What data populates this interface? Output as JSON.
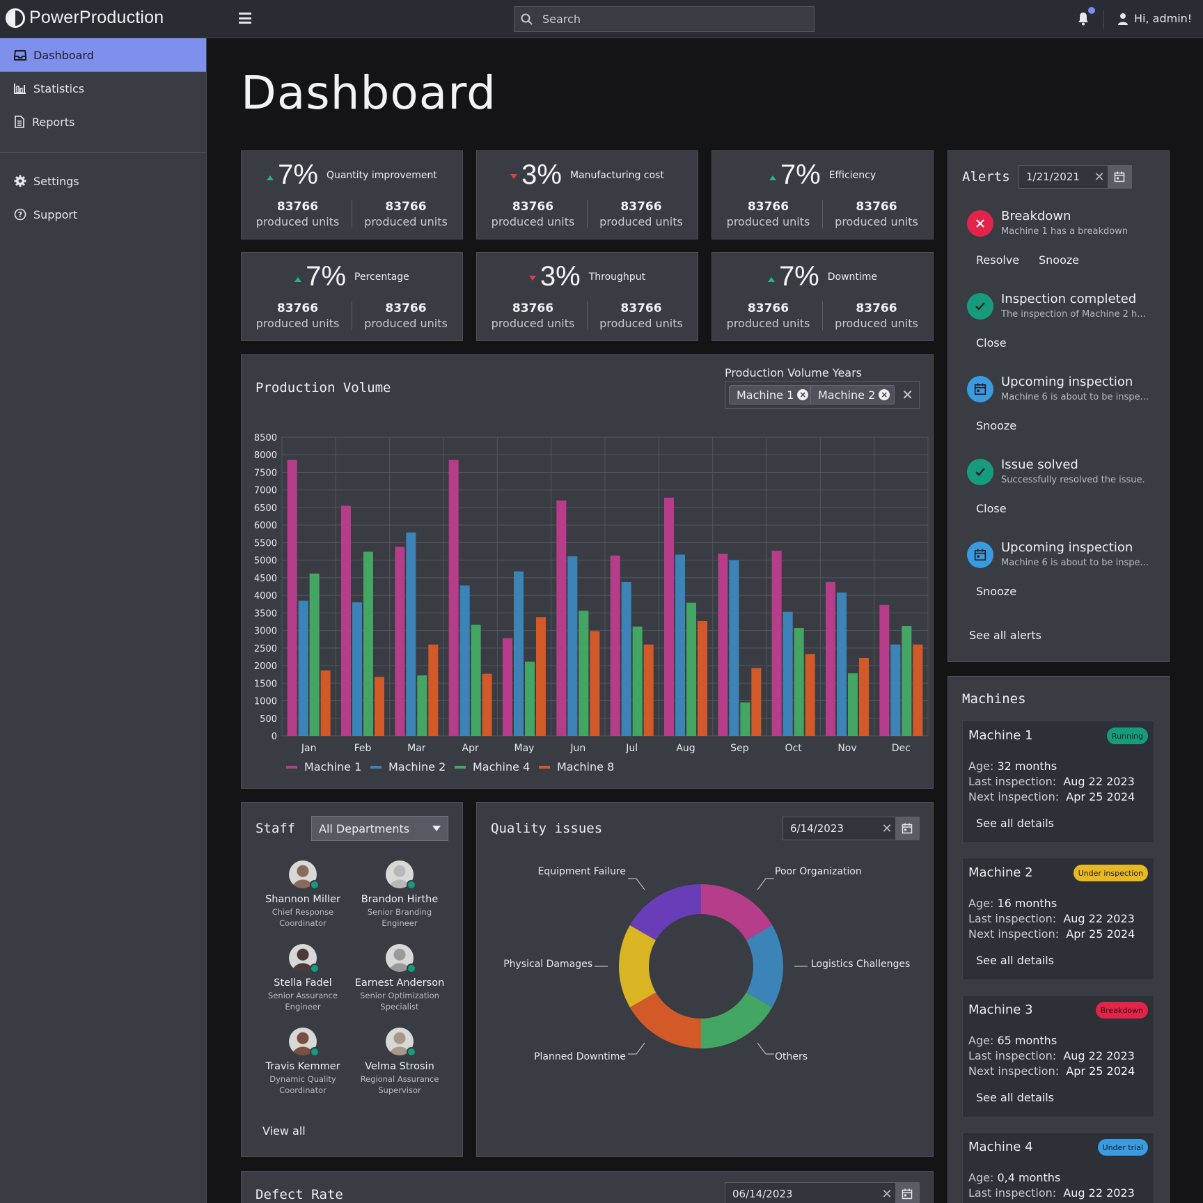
{
  "app": {
    "name": "PowerProduction"
  },
  "search": {
    "placeholder": "Search"
  },
  "user": {
    "greeting": "Hi, admin!"
  },
  "sidebar": {
    "items": [
      {
        "label": "Dashboard",
        "icon": "inbox-icon",
        "active": true
      },
      {
        "label": "Statistics",
        "icon": "statistics-icon"
      },
      {
        "label": "Reports",
        "icon": "document-icon"
      }
    ],
    "items2": [
      {
        "label": "Settings",
        "icon": "gear-icon"
      },
      {
        "label": "Support",
        "icon": "help-icon"
      }
    ]
  },
  "page": {
    "title": "Dashboard"
  },
  "kpis": [
    {
      "trend": "up",
      "percent": "7%",
      "label": "Quantity improvement",
      "v1": "83766",
      "u1": "produced units",
      "v2": "83766",
      "u2": "produced units"
    },
    {
      "trend": "down",
      "percent": "3%",
      "label": "Manufacturing cost",
      "v1": "83766",
      "u1": "produced units",
      "v2": "83766",
      "u2": "produced units"
    },
    {
      "trend": "up",
      "percent": "7%",
      "label": "Efficiency",
      "v1": "83766",
      "u1": "produced units",
      "v2": "83766",
      "u2": "produced units"
    },
    {
      "trend": "up",
      "percent": "7%",
      "label": "Percentage",
      "v1": "83766",
      "u1": "produced units",
      "v2": "83766",
      "u2": "produced units"
    },
    {
      "trend": "down",
      "percent": "3%",
      "label": "Throughput",
      "v1": "83766",
      "u1": "produced units",
      "v2": "83766",
      "u2": "produced units"
    },
    {
      "trend": "up",
      "percent": "7%",
      "label": "Downtime",
      "v1": "83766",
      "u1": "produced units",
      "v2": "83766",
      "u2": "produced units"
    }
  ],
  "production": {
    "title": "Production Volume",
    "filter_label": "Production Volume Years",
    "chips": [
      "Machine 1",
      "Machine 2"
    ]
  },
  "chart_data": {
    "type": "bar",
    "categories": [
      "Jan",
      "Feb",
      "Mar",
      "Apr",
      "May",
      "Jun",
      "Jul",
      "Aug",
      "Sep",
      "Oct",
      "Nov",
      "Dec"
    ],
    "ylim": [
      0,
      8500
    ],
    "yticks": [
      0,
      500,
      1000,
      1500,
      2000,
      2500,
      3000,
      3500,
      4000,
      4500,
      5000,
      5500,
      6000,
      6500,
      7000,
      7500,
      8000,
      8500
    ],
    "grid": true,
    "legend": "bottom-left",
    "series": [
      {
        "name": "Machine 1",
        "color": "#b53d8a",
        "values": [
          7850,
          6550,
          5380,
          7850,
          2780,
          6700,
          5130,
          6780,
          5180,
          5270,
          4380,
          3730
        ]
      },
      {
        "name": "Machine 2",
        "color": "#3c83b8",
        "values": [
          3850,
          3800,
          5790,
          4280,
          4680,
          5110,
          4380,
          5160,
          5000,
          3530,
          4080,
          2600
        ]
      },
      {
        "name": "Machine 4",
        "color": "#44a663",
        "values": [
          4620,
          5240,
          1720,
          3160,
          2110,
          3560,
          3110,
          3790,
          950,
          3070,
          1780,
          3130
        ]
      },
      {
        "name": "Machine 8",
        "color": "#d25a28",
        "values": [
          1860,
          1680,
          2600,
          1770,
          3380,
          2980,
          2600,
          3270,
          1930,
          2330,
          2220,
          2600
        ]
      }
    ]
  },
  "alerts": {
    "title": "Alerts",
    "date": "1/21/2021",
    "items": [
      {
        "kind": "error",
        "title": "Breakdown",
        "sub": "Machine 1 has a breakdown",
        "actions": [
          "Resolve",
          "Snooze"
        ]
      },
      {
        "kind": "success",
        "title": "Inspection completed",
        "sub": "The inspection of Machine 2 h...",
        "actions": [
          "Close"
        ]
      },
      {
        "kind": "info",
        "title": "Upcoming inspection",
        "sub": "Machine 6 is about to be inspe...",
        "actions": [
          "Snooze"
        ]
      },
      {
        "kind": "success",
        "title": "Issue solved",
        "sub": "Successfully resolved the issue.",
        "actions": [
          "Close"
        ]
      },
      {
        "kind": "info",
        "title": "Upcoming inspection",
        "sub": "Machine 6 is about to be inspe...",
        "actions": [
          "Snooze"
        ]
      }
    ],
    "see_all": "See all alerts"
  },
  "machines": {
    "title": "Machines",
    "age_label": "Age:",
    "last_label": "Last inspection:",
    "next_label": "Next inspection:",
    "details_label": "See all details",
    "items": [
      {
        "name": "Machine 1",
        "status": "Running",
        "status_color": "#169c7d",
        "age": "32 months",
        "last": "Aug 22 2023",
        "next": "Apr 25 2024"
      },
      {
        "name": "Machine 2",
        "status": "Under inspection",
        "status_color": "#e8b923",
        "age": "16 months",
        "last": "Aug 22 2023",
        "next": "Apr 25 2024"
      },
      {
        "name": "Machine 3",
        "status": "Breakdown",
        "status_color": "#e3234a",
        "age": "65 months",
        "last": "Aug 22 2023",
        "next": "Apr 25 2024"
      },
      {
        "name": "Machine 4",
        "status": "Under trial",
        "status_color": "#3a9be0",
        "age": "0,4 months",
        "last": "Aug 22 2023"
      }
    ]
  },
  "staff": {
    "title": "Staff",
    "filter": "All Departments",
    "people": [
      {
        "name": "Shannon Miller",
        "role": "Chief Response Coordinator"
      },
      {
        "name": "Brandon Hirthe",
        "role": "Senior Branding Engineer"
      },
      {
        "name": "Stella Fadel",
        "role": "Senior Assurance Engineer"
      },
      {
        "name": "Earnest Anderson",
        "role": "Senior Optimization Specialist"
      },
      {
        "name": "Travis Kemmer",
        "role": "Dynamic Quality Coordinator"
      },
      {
        "name": "Velma Strosin",
        "role": "Regional Assurance Supervisor"
      }
    ],
    "view_all": "View all"
  },
  "quality": {
    "title": "Quality issues",
    "date": "6/14/2023",
    "segments": [
      {
        "label": "Poor Organization",
        "color": "#b53d8a",
        "value": 1
      },
      {
        "label": "Logistics Challenges",
        "color": "#3c83b8",
        "value": 1
      },
      {
        "label": "Others",
        "color": "#44a663",
        "value": 1
      },
      {
        "label": "Planned Downtime",
        "color": "#d25a28",
        "value": 1
      },
      {
        "label": "Physical  Damages",
        "color": "#d9b524",
        "value": 1
      },
      {
        "label": "Equipment Failure",
        "color": "#6a3db8",
        "value": 1
      }
    ]
  },
  "defect": {
    "title": "Defect Rate",
    "date": "06/14/2023"
  }
}
